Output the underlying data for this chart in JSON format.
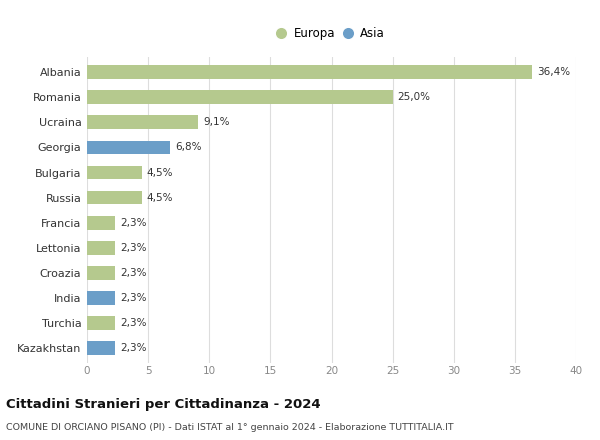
{
  "categories": [
    "Albania",
    "Romania",
    "Ucraina",
    "Georgia",
    "Bulgaria",
    "Russia",
    "Francia",
    "Lettonia",
    "Croazia",
    "India",
    "Turchia",
    "Kazakhstan"
  ],
  "values": [
    36.4,
    25.0,
    9.1,
    6.8,
    4.5,
    4.5,
    2.3,
    2.3,
    2.3,
    2.3,
    2.3,
    2.3
  ],
  "labels": [
    "36,4%",
    "25,0%",
    "9,1%",
    "6,8%",
    "4,5%",
    "4,5%",
    "2,3%",
    "2,3%",
    "2,3%",
    "2,3%",
    "2,3%",
    "2,3%"
  ],
  "continents": [
    "Europa",
    "Europa",
    "Europa",
    "Asia",
    "Europa",
    "Europa",
    "Europa",
    "Europa",
    "Europa",
    "Asia",
    "Europa",
    "Asia"
  ],
  "color_europa": "#b5c98e",
  "color_asia": "#6b9ec8",
  "background_color": "#ffffff",
  "plot_bg_color": "#ffffff",
  "title": "Cittadini Stranieri per Cittadinanza - 2024",
  "subtitle": "COMUNE DI ORCIANO PISANO (PI) - Dati ISTAT al 1° gennaio 2024 - Elaborazione TUTTITALIA.IT",
  "xlim": [
    0,
    40
  ],
  "xticks": [
    0,
    5,
    10,
    15,
    20,
    25,
    30,
    35,
    40
  ],
  "legend_europa": "Europa",
  "legend_asia": "Asia",
  "bar_height": 0.55
}
